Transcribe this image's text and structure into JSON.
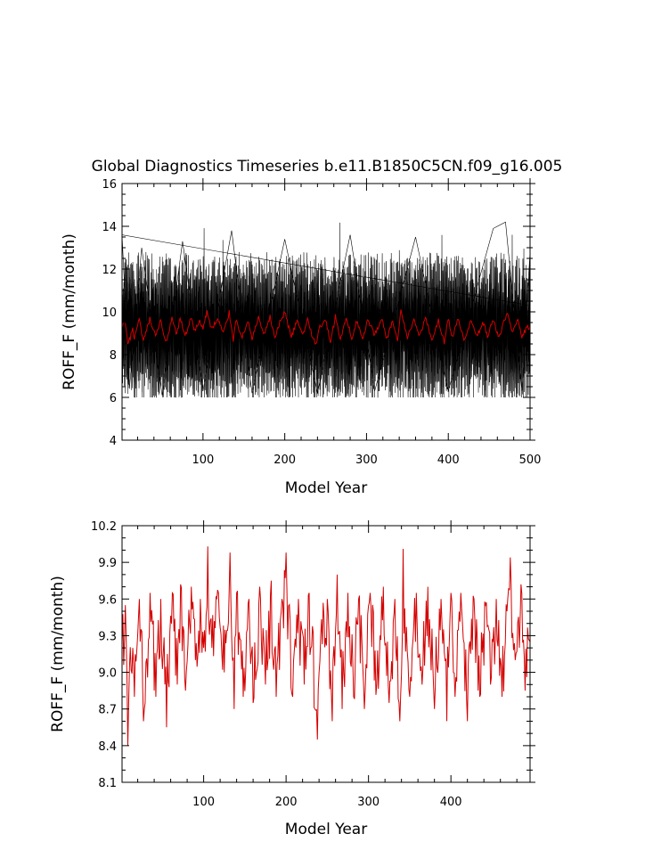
{
  "chart_data": [
    {
      "type": "line",
      "title": "Global Diagnostics Timeseries b.e11.B1850C5CN.f09_g16.005",
      "xlabel": "Model Year",
      "ylabel": "ROFF_F (mm/month)",
      "xlim": [
        1,
        500
      ],
      "ylim": [
        4,
        16
      ],
      "xticks": [
        100,
        200,
        300,
        400,
        500
      ],
      "yticks": [
        4,
        6,
        8,
        10,
        12,
        14,
        16
      ],
      "grid": false,
      "legend": "none",
      "series": [
        {
          "kind": "monthly",
          "color": "#000000",
          "summary": {
            "mean": 9.2,
            "min": 6.0,
            "max": 14.2,
            "points_per_year": 12
          },
          "samples": [
            {
              "x": 1,
              "y": 13.6
            },
            {
              "x": 10,
              "y": 6.4
            },
            {
              "x": 25,
              "y": 13.0
            },
            {
              "x": 50,
              "y": 6.1
            },
            {
              "x": 75,
              "y": 13.3
            },
            {
              "x": 100,
              "y": 6.3
            },
            {
              "x": 135,
              "y": 13.8
            },
            {
              "x": 160,
              "y": 6.2
            },
            {
              "x": 200,
              "y": 13.4
            },
            {
              "x": 240,
              "y": 6.2
            },
            {
              "x": 280,
              "y": 13.6
            },
            {
              "x": 310,
              "y": 6.3
            },
            {
              "x": 360,
              "y": 13.5
            },
            {
              "x": 400,
              "y": 6.3
            },
            {
              "x": 455,
              "y": 13.9
            },
            {
              "x": 470,
              "y": 14.2
            },
            {
              "x": 490,
              "y": 6.3
            },
            {
              "x": 500,
              "y": 12.8
            }
          ]
        },
        {
          "kind": "annual",
          "color": "#d40000",
          "same_values_as": "panel2"
        }
      ]
    },
    {
      "type": "line",
      "title": "",
      "xlabel": "Model Year",
      "ylabel": "ROFF_F (mm/month)",
      "xlim": [
        1,
        496
      ],
      "ylim": [
        8.1,
        10.2
      ],
      "xticks": [
        100,
        200,
        300,
        400
      ],
      "yticks": [
        8.1,
        8.4,
        8.7,
        9.0,
        9.3,
        9.6,
        9.9,
        10.2
      ],
      "grid": false,
      "legend": "none",
      "series": [
        {
          "color": "#d40000",
          "summary": {
            "mean": 9.18
          },
          "x": [
            1,
            5,
            8,
            14,
            16,
            22,
            27,
            35,
            42,
            48,
            55,
            62,
            68,
            72,
            78,
            85,
            90,
            96,
            100,
            105,
            110,
            118,
            125,
            132,
            137,
            140,
            148,
            155,
            160,
            168,
            175,
            182,
            188,
            195,
            200,
            208,
            215,
            222,
            228,
            235,
            238,
            242,
            250,
            256,
            262,
            268,
            275,
            282,
            288,
            295,
            302,
            310,
            318,
            325,
            332,
            338,
            342,
            350,
            358,
            365,
            372,
            380,
            388,
            395,
            400,
            405,
            412,
            420,
            428,
            435,
            442,
            448,
            455,
            462,
            468,
            472,
            478,
            485,
            490,
            496
          ],
          "y": [
            9.25,
            9.55,
            8.4,
            9.2,
            8.8,
            9.6,
            8.6,
            9.65,
            8.8,
            9.6,
            8.55,
            9.65,
            8.9,
            9.72,
            8.85,
            9.7,
            9.1,
            9.6,
            9.2,
            10.03,
            9.2,
            9.65,
            9.0,
            9.98,
            8.7,
            9.65,
            8.8,
            9.6,
            8.75,
            9.7,
            8.9,
            9.75,
            8.8,
            9.6,
            9.98,
            8.8,
            9.6,
            8.9,
            9.65,
            8.7,
            8.45,
            9.3,
            9.6,
            8.6,
            9.8,
            8.7,
            9.65,
            8.8,
            9.6,
            8.7,
            9.65,
            8.9,
            9.7,
            8.75,
            9.6,
            8.6,
            10.01,
            8.8,
            9.65,
            8.9,
            9.7,
            8.7,
            9.6,
            8.6,
            9.65,
            8.8,
            9.65,
            8.6,
            9.6,
            8.8,
            9.55,
            8.9,
            9.6,
            8.8,
            9.5,
            9.94,
            9.1,
            9.72,
            8.85,
            9.25
          ]
        }
      ]
    }
  ]
}
